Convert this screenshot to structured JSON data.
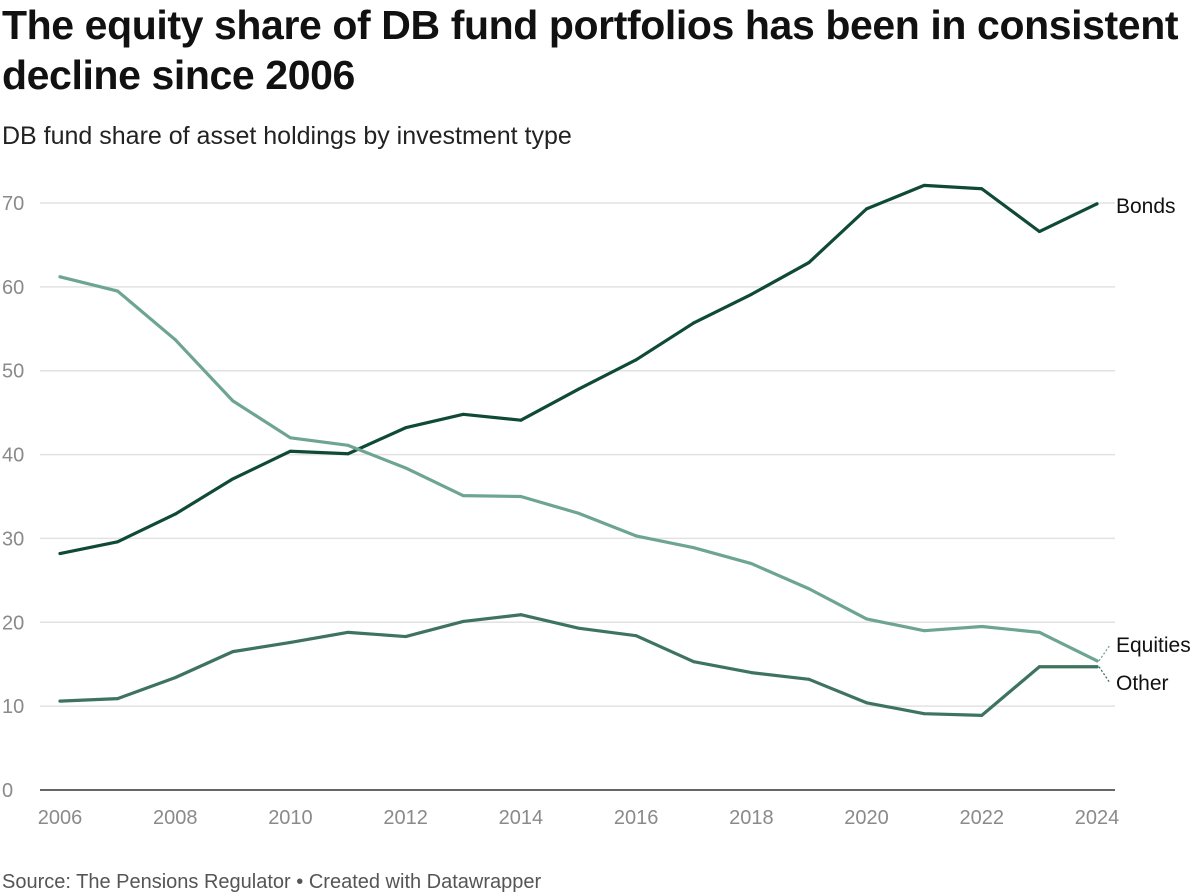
{
  "title": "The equity share of DB fund portfolios has been in consistent decline since 2006",
  "subtitle": "DB fund share of asset holdings by investment type",
  "footer": {
    "source": "Source: The Pensions Regulator",
    "separator": "•",
    "credit": "Created with Datawrapper"
  },
  "chart_data": {
    "type": "line",
    "title": "The equity share of DB fund portfolios has been in consistent decline since 2006",
    "subtitle": "DB fund share of asset holdings by investment type",
    "xlabel": "",
    "ylabel": "",
    "x": [
      2006,
      2007,
      2008,
      2009,
      2010,
      2011,
      2012,
      2013,
      2014,
      2015,
      2016,
      2017,
      2018,
      2019,
      2020,
      2021,
      2022,
      2023,
      2024
    ],
    "xticks": [
      "2006",
      "2008",
      "2010",
      "2012",
      "2014",
      "2016",
      "2018",
      "2020",
      "2022",
      "2024"
    ],
    "yticks": [
      "0",
      "10",
      "20",
      "30",
      "40",
      "50",
      "60",
      "70"
    ],
    "ylim": [
      0,
      70
    ],
    "xlim": [
      2006,
      2024
    ],
    "grid": true,
    "legend": "direct labels at right end of lines",
    "series": [
      {
        "name": "Bonds",
        "color": "#0f4a36",
        "values": [
          28.2,
          29.6,
          32.9,
          37.1,
          40.4,
          40.1,
          43.2,
          44.8,
          44.1,
          47.8,
          51.3,
          55.7,
          59.1,
          62.9,
          69.3,
          72.1,
          71.7,
          66.6,
          69.9
        ]
      },
      {
        "name": "Equities",
        "color": "#6da592",
        "values": [
          61.2,
          59.5,
          53.7,
          46.4,
          42.0,
          41.1,
          38.4,
          35.1,
          35.0,
          33.0,
          30.3,
          28.9,
          27.0,
          24.0,
          20.4,
          19.0,
          19.5,
          18.8,
          15.4
        ]
      },
      {
        "name": "Other",
        "color": "#3e745f",
        "values": [
          10.6,
          10.9,
          13.4,
          16.5,
          17.6,
          18.8,
          18.3,
          20.1,
          20.9,
          19.3,
          18.4,
          15.3,
          14.0,
          13.2,
          10.4,
          9.1,
          8.9,
          14.7,
          14.7
        ]
      }
    ]
  }
}
